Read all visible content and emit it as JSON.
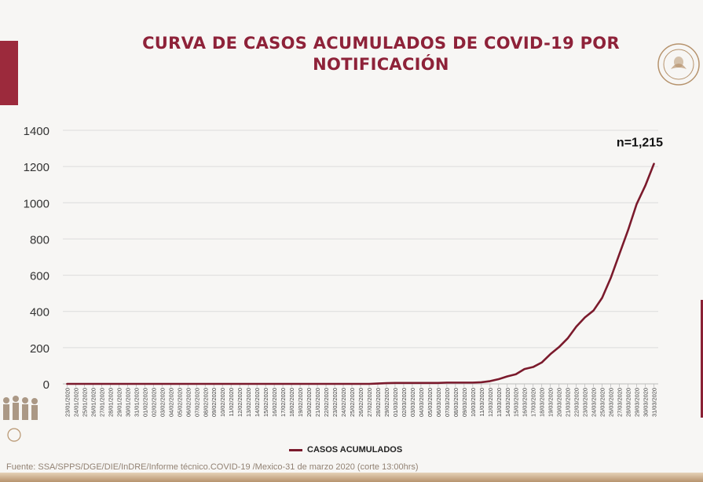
{
  "title_lines": [
    "CURVA DE CASOS ACUMULADOS DE COVID-19 POR",
    "NOTIFICACIÓN"
  ],
  "colors": {
    "accent": "#8e2239",
    "line": "#7b1a2c",
    "gold": "#b6936d"
  },
  "annotation": "n=1,215",
  "legend_label": "CASOS ACUMULADOS",
  "source": "Fuente: SSA/SPPS/DGE/DIE/InDRE/Informe técnico.COVID-19 /Mexico-31 de marzo 2020 (corte 13:00hrs)",
  "chart_data": {
    "type": "line",
    "title": "CURVA DE CASOS ACUMULADOS DE COVID-19 POR NOTIFICACIÓN",
    "xlabel": "",
    "ylabel": "",
    "ylim": [
      0,
      1400
    ],
    "yticks": [
      0,
      200,
      400,
      600,
      800,
      1000,
      1200,
      1400
    ],
    "grid": "horizontal",
    "legend": "bottom-center",
    "x": [
      "23/01/2020",
      "24/01/2020",
      "25/01/2020",
      "26/01/2020",
      "27/01/2020",
      "28/01/2020",
      "29/01/2020",
      "30/01/2020",
      "31/01/2020",
      "01/02/2020",
      "02/02/2020",
      "03/02/2020",
      "04/02/2020",
      "05/02/2020",
      "06/02/2020",
      "07/02/2020",
      "08/02/2020",
      "09/02/2020",
      "10/02/2020",
      "11/02/2020",
      "12/02/2020",
      "13/02/2020",
      "14/02/2020",
      "15/02/2020",
      "16/02/2020",
      "17/02/2020",
      "18/02/2020",
      "19/02/2020",
      "20/02/2020",
      "21/02/2020",
      "22/02/2020",
      "23/02/2020",
      "24/02/2020",
      "25/02/2020",
      "26/02/2020",
      "27/02/2020",
      "28/02/2020",
      "29/02/2020",
      "01/03/2020",
      "02/03/2020",
      "03/03/2020",
      "04/03/2020",
      "05/03/2020",
      "06/03/2020",
      "07/03/2020",
      "08/03/2020",
      "09/03/2020",
      "10/03/2020",
      "11/03/2020",
      "12/03/2020",
      "13/03/2020",
      "14/03/2020",
      "15/03/2020",
      "16/03/2020",
      "17/03/2020",
      "18/03/2020",
      "19/03/2020",
      "20/03/2020",
      "21/03/2020",
      "22/03/2020",
      "23/03/2020",
      "24/03/2020",
      "25/03/2020",
      "26/03/2020",
      "27/03/2020",
      "28/03/2020",
      "29/03/2020",
      "30/03/2020",
      "31/03/2020"
    ],
    "series": [
      {
        "name": "CASOS ACUMULADOS",
        "values": [
          0,
          0,
          0,
          0,
          0,
          0,
          0,
          0,
          0,
          0,
          0,
          0,
          0,
          0,
          0,
          0,
          0,
          0,
          0,
          0,
          0,
          0,
          0,
          0,
          0,
          0,
          0,
          0,
          0,
          0,
          0,
          0,
          0,
          0,
          0,
          0,
          2,
          4,
          5,
          5,
          5,
          5,
          5,
          5,
          7,
          7,
          7,
          7,
          9,
          15,
          26,
          41,
          53,
          82,
          93,
          118,
          164,
          203,
          251,
          316,
          367,
          405,
          475,
          585,
          717,
          848,
          993,
          1094,
          1215
        ]
      }
    ]
  }
}
